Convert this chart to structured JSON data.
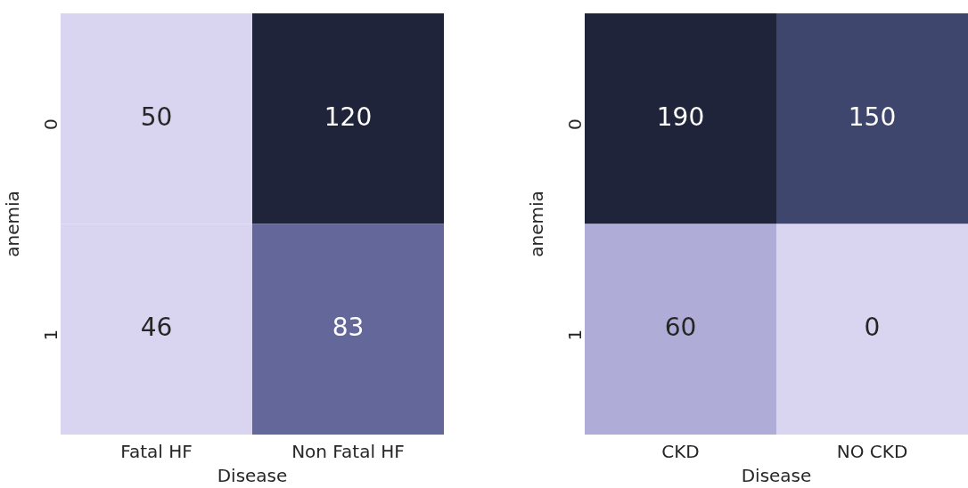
{
  "chart_data": [
    {
      "type": "heatmap",
      "categories": [
        "Fatal HF",
        "Non Fatal HF"
      ],
      "y_categories": [
        "0",
        "1"
      ],
      "xlabel": "Disease",
      "ylabel": "anemia",
      "cells": [
        [
          50,
          120
        ],
        [
          46,
          83
        ]
      ],
      "colors": [
        "#d9d4f0",
        "#1f243b",
        "#d9d4f0",
        "#63679a"
      ],
      "data_labels": true
    },
    {
      "type": "heatmap",
      "categories": [
        "CKD",
        "NO CKD"
      ],
      "y_categories": [
        "0",
        "1"
      ],
      "xlabel": "Disease",
      "ylabel": "anemia",
      "cells": [
        [
          190,
          150
        ],
        [
          60,
          0
        ]
      ],
      "colors": [
        "#1f243b",
        "#3f466d",
        "#b0acd8",
        "#d9d4f0"
      ],
      "data_labels": true
    }
  ]
}
